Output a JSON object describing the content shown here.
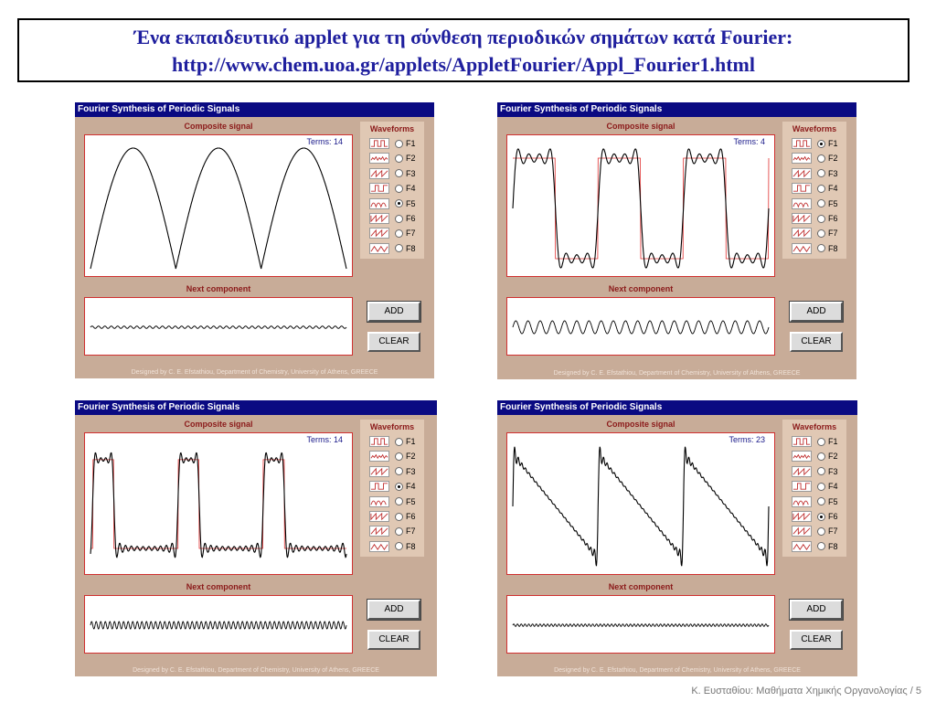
{
  "header": {
    "line1": "Ένα εκπαιδευτικό applet για τη σύνθεση περιοδικών σημάτων κατά Fourier:",
    "line2": "http://www.chem.uoa.gr/applets/AppletFourier/Appl_Fourier1.html"
  },
  "common": {
    "window_title": "Fourier Synthesis of Periodic Signals",
    "composite_label": "Composite signal",
    "waveforms_label": "Waveforms",
    "next_component_label": "Next component",
    "add_label": "ADD",
    "clear_label": "CLEAR",
    "credit": "Designed by C. E. Efstathiou, Department of Chemistry, University of Athens, GREECE",
    "waveform_options": [
      "F1",
      "F2",
      "F3",
      "F4",
      "F5",
      "F6",
      "F7",
      "F8"
    ],
    "colors": {
      "titlebar": "#0a0a82",
      "panel": "#c8ac98",
      "plot_border": "#d03030",
      "signal": "#000000",
      "overshoot": "#e03030"
    }
  },
  "applets": [
    {
      "terms_text": "Terms: 14",
      "selected_waveform": "F5",
      "signal_type": "rectified-sine",
      "next_component_amplitude": "low"
    },
    {
      "terms_text": "Terms: 4",
      "selected_waveform": "F1",
      "signal_type": "square",
      "next_component_amplitude": "high"
    },
    {
      "terms_text": "Terms: 14",
      "selected_waveform": "F4",
      "signal_type": "pulse-train",
      "next_component_amplitude": "medium"
    },
    {
      "terms_text": "Terms: 23",
      "selected_waveform": "F6",
      "signal_type": "sawtooth",
      "next_component_amplitude": "low"
    }
  ],
  "footer": {
    "text": "Κ. Ευσταθίου: Μαθήματα Χημικής Οργανολογίας / 5"
  }
}
